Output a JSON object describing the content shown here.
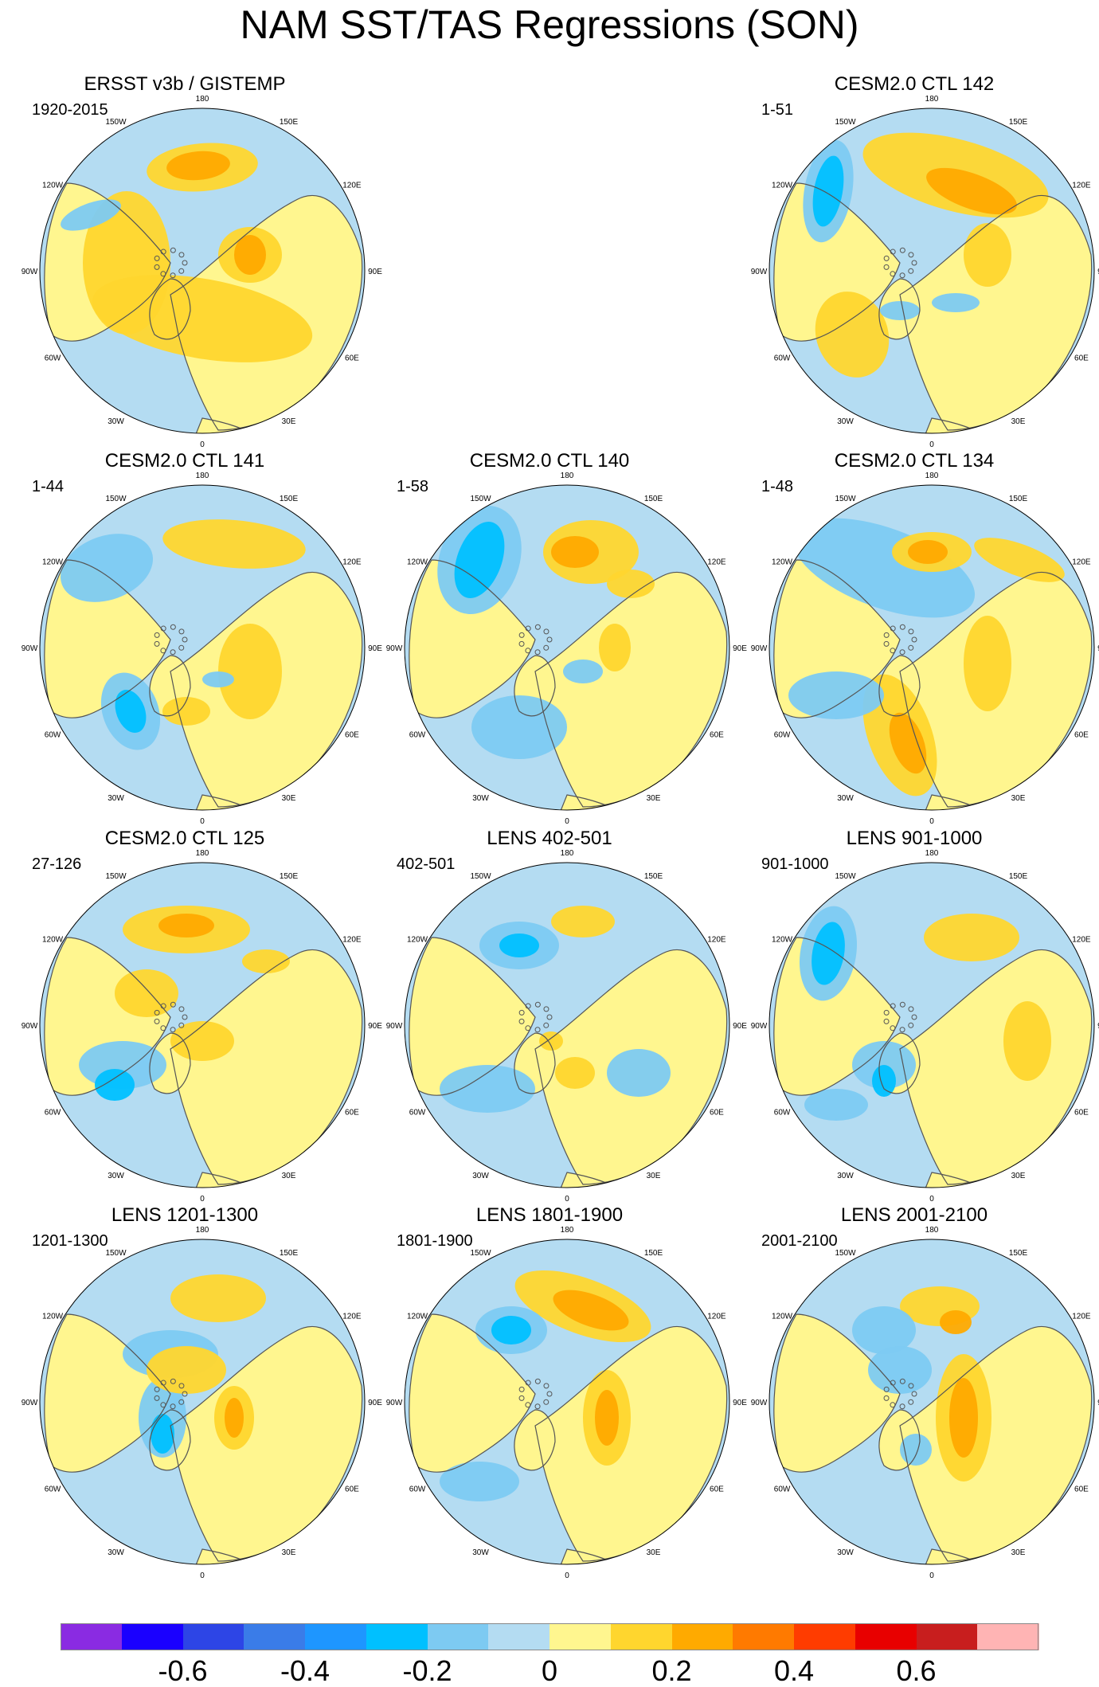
{
  "title": "NAM SST/TAS Regressions (SON)",
  "panels": [
    {
      "title": "ERSST v3b / GISTEMP",
      "range": "1920-2015"
    },
    {
      "title": "CESM2.0 CTL 142",
      "range": "1-51"
    },
    {
      "title": "CESM2.0 CTL 141",
      "range": "1-44"
    },
    {
      "title": "CESM2.0 CTL 140",
      "range": "1-58"
    },
    {
      "title": "CESM2.0 CTL 134",
      "range": "1-48"
    },
    {
      "title": "CESM2.0 CTL 125",
      "range": "27-126"
    },
    {
      "title": "LENS 402-501",
      "range": "402-501"
    },
    {
      "title": "LENS 901-1000",
      "range": "901-1000"
    },
    {
      "title": "LENS 1201-1300",
      "range": "1201-1300"
    },
    {
      "title": "LENS 1801-1900",
      "range": "1801-1900"
    },
    {
      "title": "LENS 2001-2100",
      "range": "2001-2100"
    }
  ],
  "longitude_labels": [
    "180",
    "150E",
    "120E",
    "90E",
    "60E",
    "30E",
    "0",
    "30W",
    "60W",
    "90W",
    "120W",
    "150W"
  ],
  "colorbar": {
    "colors": [
      "#8a2be2",
      "#1a00ff",
      "#2d45e6",
      "#3a7ce8",
      "#1e96ff",
      "#00c0ff",
      "#7dcaf2",
      "#b4dcf2",
      "#fff68f",
      "#ffd62e",
      "#ffaa00",
      "#ff7a00",
      "#ff3c00",
      "#e80000",
      "#c81e1e",
      "#ffb4b4"
    ],
    "tick_labels": [
      "-0.6",
      "-0.4",
      "-0.2",
      "0",
      "0.2",
      "0.4",
      "0.6"
    ],
    "tick_values": [
      -0.6,
      -0.4,
      -0.2,
      0,
      0.2,
      0.4,
      0.6
    ],
    "range": [
      -0.8,
      0.8
    ]
  }
}
